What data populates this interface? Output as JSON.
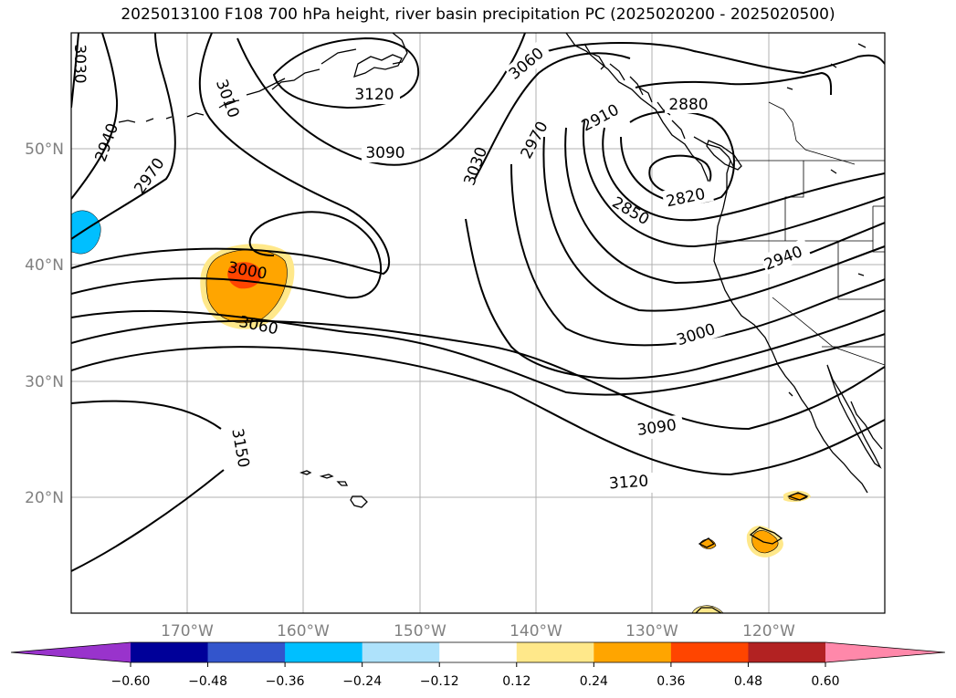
{
  "title": "2025013100 F108 700 hPa height, river basin precipitation PC (2025020200 - 2025020500)",
  "lat_labels": [
    "50°N",
    "40°N",
    "30°N",
    "20°N"
  ],
  "lon_labels": [
    "170°W",
    "160°W",
    "150°W",
    "140°W",
    "130°W",
    "120°W"
  ],
  "contour_labels": [
    "3120",
    "3060",
    "3030",
    "3010",
    "2940",
    "2970",
    "2880",
    "2910",
    "3090",
    "2970",
    "3030",
    "2820",
    "2850",
    "2940",
    "3000",
    "3060",
    "3000",
    "3090",
    "3150",
    "3120"
  ],
  "colorbar": {
    "ticks": [
      "−0.60",
      "−0.48",
      "−0.36",
      "−0.24",
      "−0.12",
      "0.12",
      "0.24",
      "0.36",
      "0.48",
      "0.60"
    ],
    "colors": [
      "#9933cc",
      "#000099",
      "#3355cc",
      "#00bfff",
      "#aee2fb",
      "#ffffff",
      "#ffe88a",
      "#ffa500",
      "#ff4500",
      "#b22222",
      "#ff88aa"
    ]
  }
}
